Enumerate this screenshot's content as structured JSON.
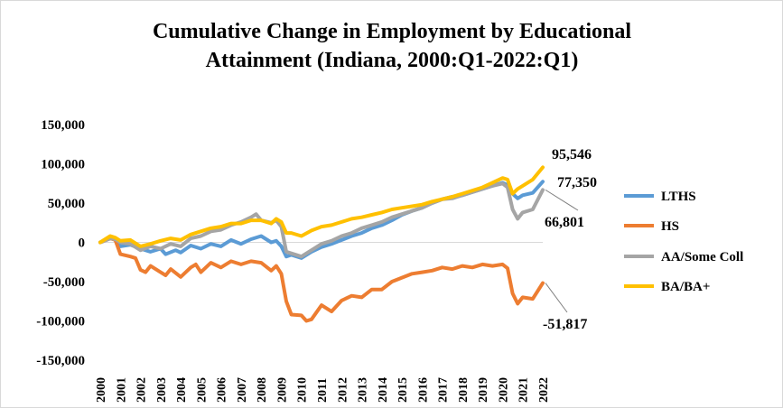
{
  "chart_data": {
    "type": "line",
    "title_lines": [
      "Cumulative Change in Employment by Educational",
      "Attainment (Indiana, 2000:Q1-2022:Q1)"
    ],
    "xlabel": "",
    "ylabel": "",
    "ylim": [
      -150000,
      150000
    ],
    "yticks": [
      150000,
      100000,
      50000,
      0,
      -50000,
      -100000,
      -150000
    ],
    "ytick_labels": [
      "150,000",
      "100,000",
      "50,000",
      "0",
      "-50,000",
      "-100,000",
      "-150,000"
    ],
    "xticks": [
      "2000",
      "2001",
      "2002",
      "2003",
      "2004",
      "2005",
      "2006",
      "2007",
      "2008",
      "2009",
      "2010",
      "2011",
      "2012",
      "2013",
      "2014",
      "2015",
      "2016",
      "2017",
      "2018",
      "2019",
      "2020",
      "2021",
      "2022"
    ],
    "x_range": [
      2000.0,
      2022.0
    ],
    "grid": false,
    "legend_position": "right",
    "series": [
      {
        "name": "LTHS",
        "color": "#5B9BD5",
        "points": [
          [
            2000.0,
            0
          ],
          [
            2000.5,
            5000
          ],
          [
            2000.75,
            4000
          ],
          [
            2001.0,
            -5000
          ],
          [
            2001.5,
            -3000
          ],
          [
            2002.0,
            -8000
          ],
          [
            2002.5,
            -12000
          ],
          [
            2003.0,
            -8000
          ],
          [
            2003.25,
            -15000
          ],
          [
            2003.75,
            -10000
          ],
          [
            2004.0,
            -13000
          ],
          [
            2004.5,
            -4000
          ],
          [
            2005.0,
            -8000
          ],
          [
            2005.5,
            -2000
          ],
          [
            2006.0,
            -5000
          ],
          [
            2006.5,
            3000
          ],
          [
            2007.0,
            -2000
          ],
          [
            2007.5,
            4000
          ],
          [
            2008.0,
            8000
          ],
          [
            2008.5,
            0
          ],
          [
            2008.75,
            2000
          ],
          [
            2009.0,
            -5000
          ],
          [
            2009.25,
            -18000
          ],
          [
            2009.5,
            -16000
          ],
          [
            2010.0,
            -20000
          ],
          [
            2010.5,
            -12000
          ],
          [
            2011.0,
            -6000
          ],
          [
            2011.5,
            -2000
          ],
          [
            2012.0,
            3000
          ],
          [
            2012.5,
            8000
          ],
          [
            2013.0,
            12000
          ],
          [
            2013.5,
            18000
          ],
          [
            2014.0,
            22000
          ],
          [
            2014.5,
            28000
          ],
          [
            2015.0,
            35000
          ],
          [
            2015.5,
            40000
          ],
          [
            2016.0,
            44000
          ],
          [
            2016.5,
            50000
          ],
          [
            2017.0,
            55000
          ],
          [
            2017.5,
            58000
          ],
          [
            2018.0,
            60000
          ],
          [
            2018.5,
            64000
          ],
          [
            2019.0,
            68000
          ],
          [
            2019.5,
            72000
          ],
          [
            2020.0,
            76000
          ],
          [
            2020.25,
            73000
          ],
          [
            2020.5,
            62000
          ],
          [
            2020.75,
            56000
          ],
          [
            2021.0,
            60000
          ],
          [
            2021.5,
            63000
          ],
          [
            2022.0,
            77350
          ]
        ]
      },
      {
        "name": "HS",
        "color": "#ED7D31",
        "points": [
          [
            2000.0,
            0
          ],
          [
            2000.5,
            5000
          ],
          [
            2000.75,
            3000
          ],
          [
            2001.0,
            -15000
          ],
          [
            2001.5,
            -18000
          ],
          [
            2001.75,
            -20000
          ],
          [
            2002.0,
            -35000
          ],
          [
            2002.25,
            -38000
          ],
          [
            2002.5,
            -30000
          ],
          [
            2003.0,
            -38000
          ],
          [
            2003.25,
            -42000
          ],
          [
            2003.5,
            -34000
          ],
          [
            2004.0,
            -44000
          ],
          [
            2004.5,
            -32000
          ],
          [
            2004.75,
            -28000
          ],
          [
            2005.0,
            -38000
          ],
          [
            2005.5,
            -26000
          ],
          [
            2006.0,
            -32000
          ],
          [
            2006.5,
            -24000
          ],
          [
            2007.0,
            -28000
          ],
          [
            2007.5,
            -24000
          ],
          [
            2008.0,
            -26000
          ],
          [
            2008.5,
            -36000
          ],
          [
            2008.75,
            -30000
          ],
          [
            2009.0,
            -40000
          ],
          [
            2009.25,
            -75000
          ],
          [
            2009.5,
            -92000
          ],
          [
            2010.0,
            -93000
          ],
          [
            2010.25,
            -100000
          ],
          [
            2010.5,
            -98000
          ],
          [
            2011.0,
            -80000
          ],
          [
            2011.5,
            -88000
          ],
          [
            2012.0,
            -74000
          ],
          [
            2012.5,
            -68000
          ],
          [
            2013.0,
            -70000
          ],
          [
            2013.5,
            -60000
          ],
          [
            2014.0,
            -60000
          ],
          [
            2014.5,
            -50000
          ],
          [
            2015.0,
            -45000
          ],
          [
            2015.5,
            -40000
          ],
          [
            2016.0,
            -38000
          ],
          [
            2016.5,
            -36000
          ],
          [
            2017.0,
            -32000
          ],
          [
            2017.5,
            -34000
          ],
          [
            2018.0,
            -30000
          ],
          [
            2018.5,
            -32000
          ],
          [
            2019.0,
            -28000
          ],
          [
            2019.5,
            -30000
          ],
          [
            2020.0,
            -28000
          ],
          [
            2020.25,
            -33000
          ],
          [
            2020.5,
            -65000
          ],
          [
            2020.75,
            -78000
          ],
          [
            2021.0,
            -70000
          ],
          [
            2021.5,
            -72000
          ],
          [
            2022.0,
            -51817
          ]
        ]
      },
      {
        "name": "AA/Some Coll",
        "color": "#A5A5A5",
        "points": [
          [
            2000.0,
            0
          ],
          [
            2000.5,
            5000
          ],
          [
            2000.75,
            4000
          ],
          [
            2001.0,
            0
          ],
          [
            2001.5,
            -2000
          ],
          [
            2002.0,
            -10000
          ],
          [
            2002.5,
            -5000
          ],
          [
            2003.0,
            -8000
          ],
          [
            2003.5,
            -2000
          ],
          [
            2004.0,
            -5000
          ],
          [
            2004.5,
            5000
          ],
          [
            2005.0,
            8000
          ],
          [
            2005.5,
            14000
          ],
          [
            2006.0,
            16000
          ],
          [
            2006.5,
            22000
          ],
          [
            2007.0,
            26000
          ],
          [
            2007.5,
            32000
          ],
          [
            2007.75,
            36000
          ],
          [
            2008.0,
            28000
          ],
          [
            2008.5,
            25000
          ],
          [
            2008.75,
            28000
          ],
          [
            2009.0,
            20000
          ],
          [
            2009.25,
            -12000
          ],
          [
            2009.5,
            -14000
          ],
          [
            2010.0,
            -18000
          ],
          [
            2010.5,
            -10000
          ],
          [
            2011.0,
            -2000
          ],
          [
            2011.5,
            2000
          ],
          [
            2012.0,
            8000
          ],
          [
            2012.5,
            12000
          ],
          [
            2013.0,
            18000
          ],
          [
            2013.5,
            22000
          ],
          [
            2014.0,
            26000
          ],
          [
            2014.5,
            32000
          ],
          [
            2015.0,
            36000
          ],
          [
            2015.5,
            40000
          ],
          [
            2016.0,
            44000
          ],
          [
            2016.5,
            50000
          ],
          [
            2017.0,
            55000
          ],
          [
            2017.5,
            56000
          ],
          [
            2018.0,
            60000
          ],
          [
            2018.5,
            64000
          ],
          [
            2019.0,
            68000
          ],
          [
            2019.5,
            72000
          ],
          [
            2020.0,
            75000
          ],
          [
            2020.25,
            70000
          ],
          [
            2020.5,
            42000
          ],
          [
            2020.75,
            30000
          ],
          [
            2021.0,
            38000
          ],
          [
            2021.5,
            42000
          ],
          [
            2022.0,
            66801
          ]
        ]
      },
      {
        "name": "BA/BA+",
        "color": "#FFC000",
        "points": [
          [
            2000.0,
            0
          ],
          [
            2000.5,
            8000
          ],
          [
            2000.75,
            6000
          ],
          [
            2001.0,
            2000
          ],
          [
            2001.5,
            3000
          ],
          [
            2002.0,
            -5000
          ],
          [
            2002.5,
            -2000
          ],
          [
            2003.0,
            2000
          ],
          [
            2003.5,
            5000
          ],
          [
            2004.0,
            3000
          ],
          [
            2004.5,
            10000
          ],
          [
            2005.0,
            14000
          ],
          [
            2005.5,
            18000
          ],
          [
            2006.0,
            20000
          ],
          [
            2006.5,
            24000
          ],
          [
            2007.0,
            24000
          ],
          [
            2007.5,
            28000
          ],
          [
            2008.0,
            28000
          ],
          [
            2008.5,
            24000
          ],
          [
            2008.75,
            30000
          ],
          [
            2009.0,
            26000
          ],
          [
            2009.25,
            12000
          ],
          [
            2009.5,
            12000
          ],
          [
            2010.0,
            8000
          ],
          [
            2010.5,
            15000
          ],
          [
            2011.0,
            20000
          ],
          [
            2011.5,
            22000
          ],
          [
            2012.0,
            26000
          ],
          [
            2012.5,
            30000
          ],
          [
            2013.0,
            32000
          ],
          [
            2013.5,
            35000
          ],
          [
            2014.0,
            38000
          ],
          [
            2014.5,
            42000
          ],
          [
            2015.0,
            44000
          ],
          [
            2015.5,
            46000
          ],
          [
            2016.0,
            48000
          ],
          [
            2016.5,
            52000
          ],
          [
            2017.0,
            55000
          ],
          [
            2017.5,
            58000
          ],
          [
            2018.0,
            62000
          ],
          [
            2018.5,
            66000
          ],
          [
            2019.0,
            70000
          ],
          [
            2019.5,
            76000
          ],
          [
            2020.0,
            82000
          ],
          [
            2020.25,
            80000
          ],
          [
            2020.5,
            62000
          ],
          [
            2020.75,
            68000
          ],
          [
            2021.0,
            72000
          ],
          [
            2021.5,
            80000
          ],
          [
            2022.0,
            95546
          ]
        ]
      }
    ],
    "end_labels": [
      {
        "series": "BA/BA+",
        "text": "95,546"
      },
      {
        "series": "LTHS",
        "text": "77,350"
      },
      {
        "series": "AA/Some Coll",
        "text": "66,801"
      },
      {
        "series": "HS",
        "text": "-51,817"
      }
    ]
  }
}
